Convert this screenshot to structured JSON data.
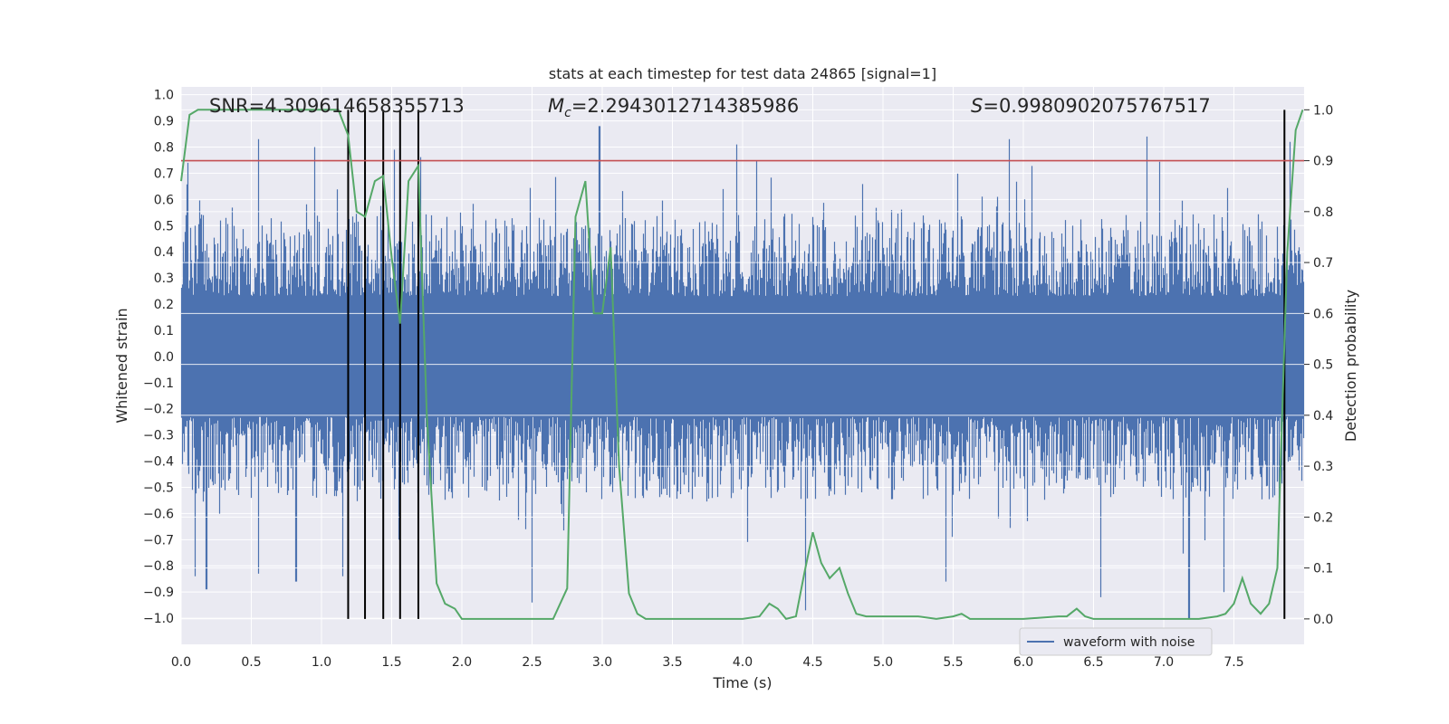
{
  "chart_data": {
    "type": "line",
    "title": "stats at each timestep for test data 24865 [signal=1]",
    "xlabel": "Time (s)",
    "ylabel": "Whitened strain",
    "y2label": "Detection probability",
    "xlim": [
      0.0,
      8.0
    ],
    "ylim": [
      -1.1,
      1.03
    ],
    "y2lim": [
      -0.05,
      1.045
    ],
    "x_ticks": [
      "0.0",
      "0.5",
      "1.0",
      "1.5",
      "2.0",
      "2.5",
      "3.0",
      "3.5",
      "4.0",
      "4.5",
      "5.0",
      "5.5",
      "6.0",
      "6.5",
      "7.0",
      "7.5"
    ],
    "x_tick_values": [
      0.0,
      0.5,
      1.0,
      1.5,
      2.0,
      2.5,
      3.0,
      3.5,
      4.0,
      4.5,
      5.0,
      5.5,
      6.0,
      6.5,
      7.0,
      7.5
    ],
    "y_ticks": [
      "1.0",
      "0.9",
      "0.8",
      "0.7",
      "0.6",
      "0.5",
      "0.4",
      "0.3",
      "0.2",
      "0.1",
      "0.0",
      "−0.1",
      "−0.2",
      "−0.3",
      "−0.4",
      "−0.5",
      "−0.6",
      "−0.7",
      "−0.8",
      "−0.9",
      "−1.0"
    ],
    "y_tick_values": [
      1.0,
      0.9,
      0.8,
      0.7,
      0.6,
      0.5,
      0.4,
      0.3,
      0.2,
      0.1,
      0.0,
      -0.1,
      -0.2,
      -0.3,
      -0.4,
      -0.5,
      -0.6,
      -0.7,
      -0.8,
      -0.9,
      -1.0
    ],
    "y2_ticks": [
      "1.0",
      "0.9",
      "0.8",
      "0.7",
      "0.6",
      "0.5",
      "0.4",
      "0.3",
      "0.2",
      "0.1",
      "0.0"
    ],
    "y2_tick_values": [
      1.0,
      0.9,
      0.8,
      0.7,
      0.6,
      0.5,
      0.4,
      0.3,
      0.2,
      0.1,
      0.0
    ],
    "annotations": {
      "snr": "SNR=4.309614658355713",
      "mc_symbol": "M",
      "mc_sub": "c",
      "mc_value": "=2.2943012714385986",
      "s_symbol": "S",
      "s_value": "=0.9980902075767517"
    },
    "legend": {
      "label": "waveform with noise",
      "loc": "lower right"
    },
    "threshold_probability": 0.9,
    "event_markers": [
      1.19,
      1.31,
      1.44,
      1.56,
      1.69,
      7.86
    ],
    "waveform_envelope": {
      "name": "waveform with noise",
      "typical_max": 0.42,
      "typical_min": -0.42,
      "peaks_upper": [
        [
          0.05,
          0.74
        ],
        [
          0.55,
          0.83
        ],
        [
          0.95,
          0.8
        ],
        [
          1.19,
          0.93
        ],
        [
          1.52,
          0.79
        ],
        [
          2.98,
          0.88
        ],
        [
          3.96,
          0.81
        ],
        [
          4.1,
          0.75
        ],
        [
          5.9,
          0.83
        ],
        [
          6.88,
          0.84
        ],
        [
          7.9,
          0.82
        ]
      ],
      "peaks_lower": [
        [
          0.1,
          -0.84
        ],
        [
          0.18,
          -0.89
        ],
        [
          0.55,
          -0.83
        ],
        [
          0.82,
          -0.86
        ],
        [
          1.15,
          -0.84
        ],
        [
          1.55,
          -0.7
        ],
        [
          2.5,
          -0.94
        ],
        [
          4.45,
          -0.97
        ],
        [
          5.45,
          -0.86
        ],
        [
          6.55,
          -0.92
        ],
        [
          7.18,
          -1.0
        ],
        [
          7.43,
          -0.9
        ]
      ]
    },
    "series": [
      {
        "name": "detection probability",
        "axis": "right",
        "x": [
          0.0,
          0.06,
          0.12,
          0.25,
          0.5,
          0.75,
          1.0,
          1.12,
          1.19,
          1.25,
          1.31,
          1.38,
          1.44,
          1.5,
          1.56,
          1.62,
          1.69,
          1.75,
          1.82,
          1.88,
          1.95,
          2.0,
          2.1,
          2.3,
          2.5,
          2.65,
          2.75,
          2.81,
          2.88,
          2.94,
          3.0,
          3.06,
          3.12,
          3.19,
          3.25,
          3.31,
          3.5,
          3.75,
          4.0,
          4.12,
          4.19,
          4.25,
          4.31,
          4.38,
          4.44,
          4.5,
          4.56,
          4.62,
          4.69,
          4.75,
          4.81,
          4.88,
          5.0,
          5.12,
          5.25,
          5.38,
          5.5,
          5.56,
          5.62,
          5.75,
          6.0,
          6.25,
          6.31,
          6.38,
          6.44,
          6.5,
          6.75,
          7.0,
          7.25,
          7.38,
          7.44,
          7.5,
          7.56,
          7.62,
          7.69,
          7.75,
          7.81,
          7.88,
          7.94,
          7.99
        ],
        "y": [
          0.86,
          0.99,
          1.0,
          1.0,
          1.0,
          1.0,
          1.0,
          1.0,
          0.95,
          0.8,
          0.79,
          0.86,
          0.87,
          0.71,
          0.58,
          0.86,
          0.89,
          0.4,
          0.07,
          0.03,
          0.02,
          0.0,
          0.0,
          0.0,
          0.0,
          0.0,
          0.06,
          0.79,
          0.86,
          0.6,
          0.6,
          0.73,
          0.3,
          0.05,
          0.01,
          0.0,
          0.0,
          0.0,
          0.0,
          0.005,
          0.03,
          0.02,
          0.0,
          0.005,
          0.09,
          0.17,
          0.11,
          0.08,
          0.1,
          0.05,
          0.01,
          0.005,
          0.005,
          0.005,
          0.005,
          0.0,
          0.005,
          0.01,
          0.0,
          0.0,
          0.0,
          0.005,
          0.005,
          0.02,
          0.005,
          0.0,
          0.0,
          0.0,
          0.0,
          0.005,
          0.01,
          0.03,
          0.08,
          0.03,
          0.01,
          0.03,
          0.1,
          0.72,
          0.96,
          1.0
        ]
      }
    ],
    "colors": {
      "waveform": "#4c72b0",
      "probability": "#55a868",
      "threshold": "#c44e52",
      "markers": "#000000",
      "plot_bg": "#eaeaf2",
      "grid": "#ffffff"
    }
  }
}
